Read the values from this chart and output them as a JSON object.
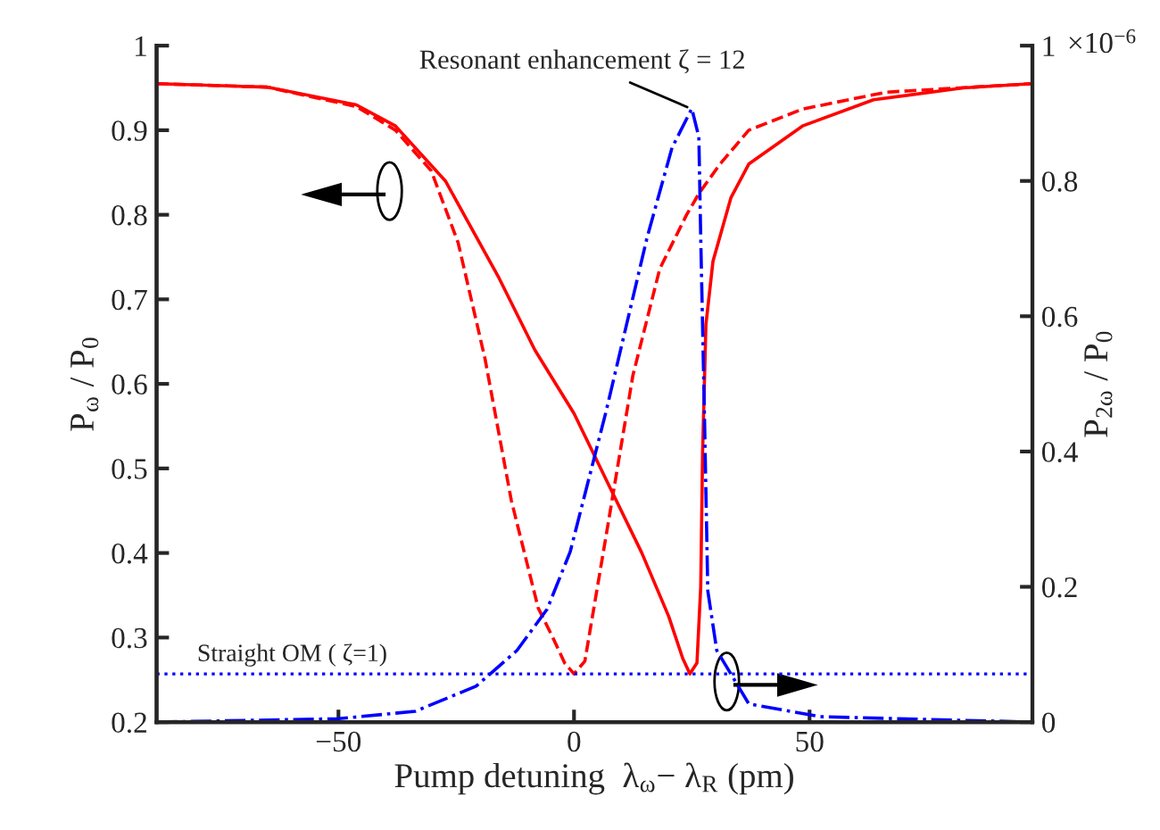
{
  "chart_data": {
    "type": "line",
    "xlabel": "Pump detuning  λ$_{ω}$− λ$_{R}$ (pm)",
    "ylabel": "P$_{ω}$ / P$_{0}$",
    "y2label": "P$_{2ω}$ / P$_{0}$",
    "xlim": [
      -88.6,
      97.3
    ],
    "xticks": [
      {
        "value": -50,
        "label": "−50"
      },
      0,
      50
    ],
    "ylim": [
      0.2,
      1
    ],
    "yticks": [
      0.2,
      0.3,
      0.4,
      0.5,
      0.6,
      0.7,
      0.8,
      0.9,
      1
    ],
    "y2lim": [
      0,
      1
    ],
    "y2ticks": [
      0,
      0.2,
      0.4,
      0.6,
      0.8,
      1
    ],
    "grid": false,
    "legend": false,
    "series": [
      {
        "color": "#ff0000",
        "line_style": "solid",
        "x": [
          -88.6,
          -65.2,
          -46.2,
          -37.9,
          -27.3,
          -15.9,
          -8.3,
          0,
          6.8,
          14.4,
          20.1,
          23.1,
          24.6,
          26.1,
          26.9,
          27.3,
          28,
          29.5,
          33.3,
          37.1,
          48.5,
          63.6,
          82.6,
          97.3
        ],
        "values": [
          0.955,
          0.951,
          0.93,
          0.905,
          0.84,
          0.725,
          0.64,
          0.565,
          0.487,
          0.4,
          0.325,
          0.275,
          0.257,
          0.27,
          0.36,
          0.52,
          0.67,
          0.745,
          0.82,
          0.86,
          0.905,
          0.936,
          0.95,
          0.955
        ]
      },
      {
        "color": "#ff0000",
        "line_style": "dashed",
        "x": [
          -88.6,
          -65.2,
          -46.2,
          -37.9,
          -30.3,
          -24.6,
          -18.9,
          -13.3,
          -7.6,
          -4.5,
          -2,
          0,
          2.3,
          6.8,
          12.5,
          18.2,
          23.9,
          26.5,
          31,
          37.1,
          48.5,
          66.3,
          97.3
        ],
        "values": [
          0.955,
          0.951,
          0.928,
          0.9,
          0.852,
          0.767,
          0.63,
          0.462,
          0.335,
          0.3,
          0.27,
          0.257,
          0.272,
          0.42,
          0.61,
          0.736,
          0.8,
          0.825,
          0.86,
          0.9,
          0.925,
          0.945,
          0.955
        ]
      },
      {
        "color": "#0000ff",
        "line_style": "dashdot",
        "axis": "y2",
        "x": [
          -88.6,
          -50,
          -33.7,
          -20.8,
          -12.1,
          -5.7,
          -0.8,
          6.8,
          15.5,
          20.8,
          25,
          26.5,
          26.9,
          27.7,
          28.4,
          30.3,
          37.1,
          52.3,
          97.3
        ],
        "values": [
          0,
          0.005,
          0.016,
          0.053,
          0.106,
          0.167,
          0.252,
          0.459,
          0.716,
          0.849,
          0.907,
          0.865,
          0.716,
          0.45,
          0.194,
          0.106,
          0.027,
          0.008,
          0
        ]
      }
    ],
    "ref_lines": [
      {
        "axis": "y",
        "value": 0.257,
        "color": "#0000ff",
        "line_style": "dotted"
      }
    ],
    "annotations": [
      {
        "text": "Resonant enhancement ζ = 12",
        "x": 25,
        "y": 0.925
      },
      {
        "text": "Straight OM ( ζ=1)",
        "x": -80,
        "y": 0.257
      },
      "×10$^{−6}$"
    ]
  }
}
